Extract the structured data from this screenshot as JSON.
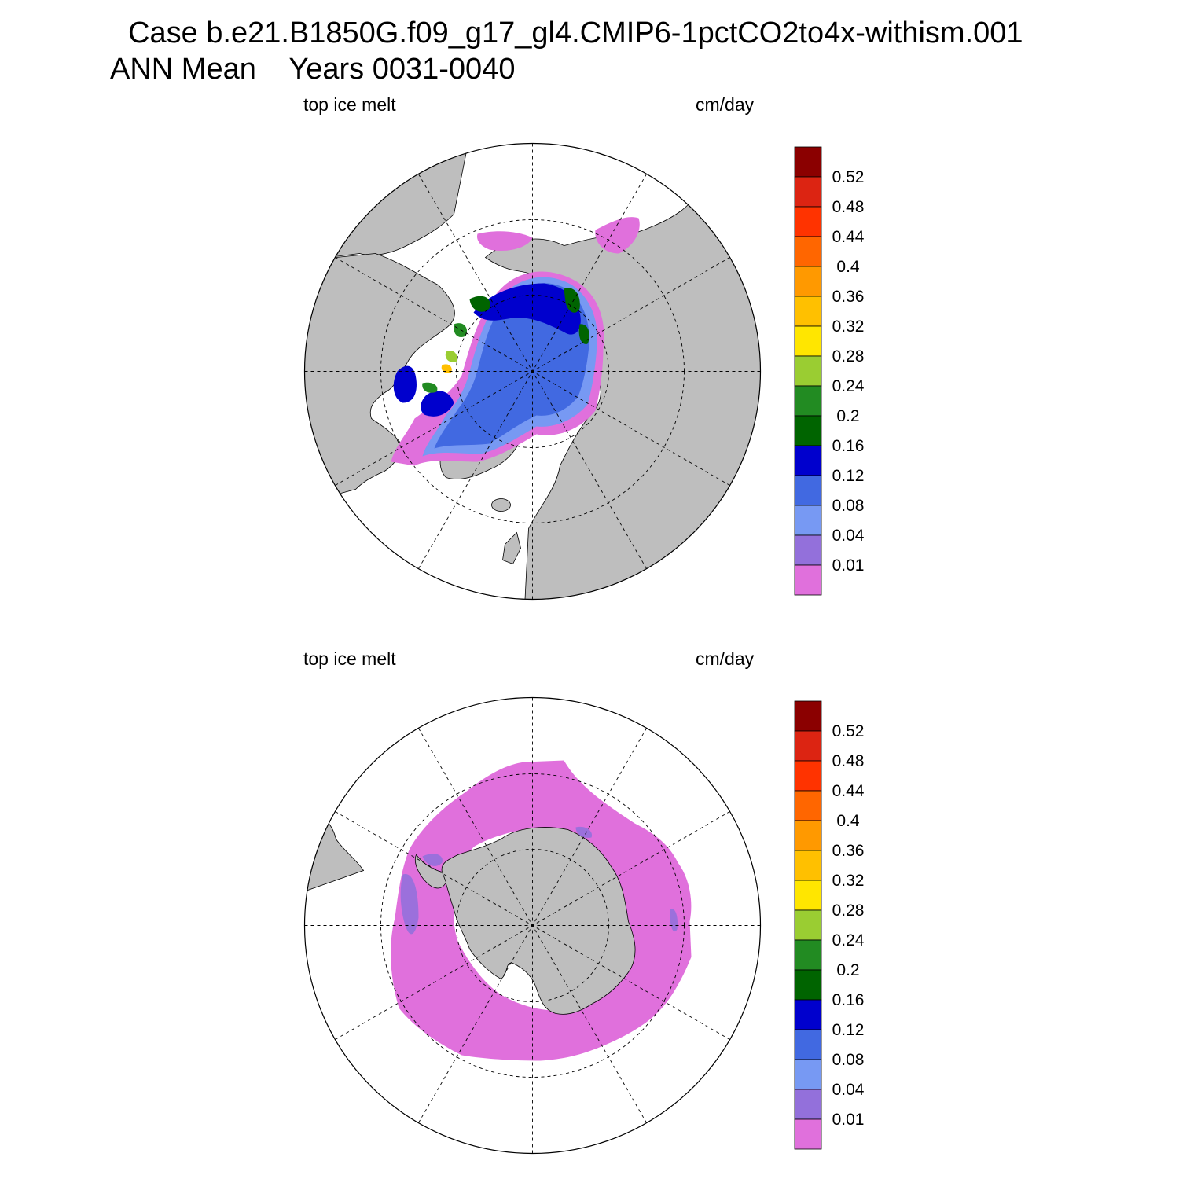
{
  "title": {
    "line1": "Case b.e21.B1850G.f09_g17_gl4.CMIP6-1pctCO2to4x-withism.001",
    "line2": "ANN Mean    Years 0031-0040"
  },
  "panels": [
    {
      "id": "north",
      "variable": "top ice melt",
      "units": "cm/day",
      "hemisphere": "Arctic (north polar stereographic)"
    },
    {
      "id": "south",
      "variable": "top ice melt",
      "units": "cm/day",
      "hemisphere": "Antarctic (south polar stereographic)"
    }
  ],
  "colorbar": {
    "labels": [
      "0.52",
      "0.48",
      "0.44",
      "0.4",
      "0.36",
      "0.32",
      "0.28",
      "0.24",
      "0.2",
      "0.16",
      "0.12",
      "0.08",
      "0.04",
      "0.01"
    ],
    "colors": [
      "#8b0000",
      "#dc2412",
      "#ff3300",
      "#ff6600",
      "#ff9900",
      "#ffc000",
      "#ffe600",
      "#9acd32",
      "#228b22",
      "#006400",
      "#0000cd",
      "#4169e1",
      "#7799f3",
      "#9370db",
      "#e070dc"
    ]
  },
  "style": {
    "land": "#bebebe",
    "ocean_no_data": "#ffffff",
    "coast": "#000000",
    "grid": "#000000"
  }
}
